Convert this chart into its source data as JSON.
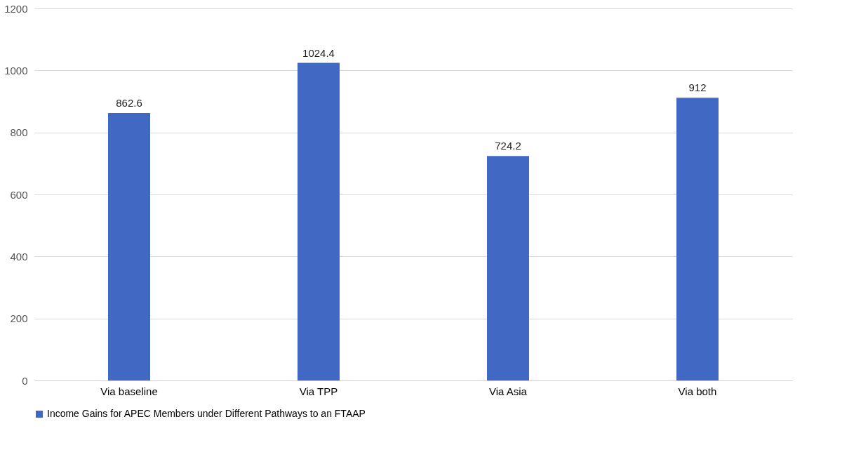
{
  "chart_data": {
    "type": "bar",
    "categories": [
      "Via baseline",
      "Via  TPP",
      "Via Asia",
      "Via both"
    ],
    "series": [
      {
        "name": "Income Gains for APEC Members under Different Pathways to an FTAAP",
        "color": "#4169c4",
        "values": [
          862.6,
          1024.4,
          724.2,
          912
        ]
      }
    ],
    "ylim": [
      0,
      1200
    ],
    "yticks": [
      0,
      200,
      400,
      600,
      800,
      1000,
      1200
    ],
    "grid": "y",
    "legend": "bottom",
    "data_labels": true
  }
}
